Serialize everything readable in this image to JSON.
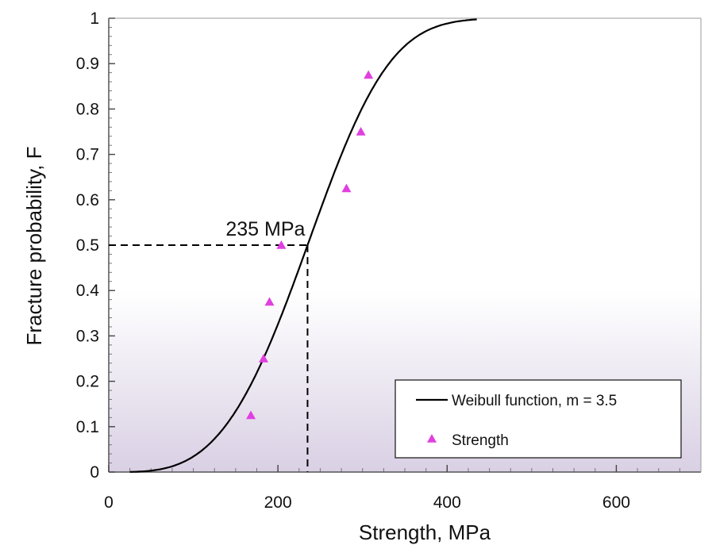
{
  "chart_data": {
    "type": "scatter",
    "xlabel": "Strength,  MPa",
    "ylabel": "Fracture probability,  F",
    "xlim": [
      0,
      700
    ],
    "ylim": [
      0,
      1
    ],
    "x_ticks": [
      0,
      200,
      400,
      600
    ],
    "y_ticks": [
      0,
      0.1,
      0.2,
      0.3,
      0.4,
      0.5,
      0.6,
      0.7,
      0.8,
      0.9,
      1
    ],
    "x_tick_labels": [
      "0",
      "200",
      "400",
      "600"
    ],
    "y_tick_labels": [
      "0",
      "0.1",
      "0.2",
      "0.3",
      "0.4",
      "0.5",
      "0.6",
      "0.7",
      "0.8",
      "0.9",
      "1"
    ],
    "grid": false,
    "legend_position": "bottom-right",
    "series": [
      {
        "name": "Weibull function, m = 3.5",
        "kind": "line",
        "color": "#000000",
        "function": "weibull",
        "shape_m": 3.5,
        "x_range": [
          25,
          435
        ]
      },
      {
        "name": "Strength",
        "kind": "scatter",
        "marker": "triangle",
        "color": "#e040e0",
        "x": [
          168,
          183,
          190,
          204,
          281,
          298,
          307
        ],
        "y": [
          0.125,
          0.25,
          0.375,
          0.5,
          0.625,
          0.75,
          0.875
        ]
      }
    ],
    "annotation": {
      "text": "235 MPa",
      "x": 235,
      "y": 0.5
    }
  }
}
